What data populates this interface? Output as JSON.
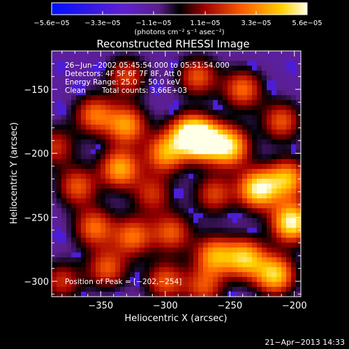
{
  "chart_data": {
    "type": "heatmap",
    "title": "Reconstructed RHESSI Image",
    "xlabel": "Heliocentric X (arcsec)",
    "ylabel": "Heliocentric Y (arcsec)",
    "xlim": [
      -388,
      -195
    ],
    "ylim": [
      -312,
      -120
    ],
    "x_ticks": [
      -350,
      -300,
      -250,
      -200
    ],
    "x_tick_labels": [
      "−350",
      "−300",
      "−250",
      "−200"
    ],
    "y_ticks": [
      -150,
      -200,
      -250,
      -300
    ],
    "y_tick_labels": [
      "−150",
      "−200",
      "−250",
      "−300"
    ],
    "colorbar": {
      "min": -5.6e-05,
      "max": 5.6e-05,
      "tick_labels": [
        "−5.6e−05",
        "−3.3e−05",
        "−1.1e−05",
        "1.1e−05",
        "3.3e−05",
        "5.6e−05"
      ],
      "units_label": "(photons cm⁻² s⁻¹ asec⁻²)"
    },
    "annotations": {
      "line1": "26−Jun−2002 05:45:54.000 to 05:51:54.000",
      "line2": "Detectors: 4F 5F 6F 7F 8F, Att 0",
      "line3": "Energy Range: 25.0 − 50.0 keV",
      "line4_a": "Clean",
      "line4_b": "Total counts: 3.66E+03",
      "peak": "Position of Peak = [−202,−254]"
    },
    "peak_position": [
      -202,
      -254
    ],
    "emission_peaks": [
      {
        "x": -202,
        "y": -254,
        "amp": 1.0
      },
      {
        "x": -228,
        "y": -228,
        "amp": 0.95
      },
      {
        "x": -270,
        "y": -190,
        "amp": 0.9
      },
      {
        "x": -250,
        "y": -195,
        "amp": 0.85
      },
      {
        "x": -282,
        "y": -185,
        "amp": 0.8
      },
      {
        "x": -300,
        "y": -200,
        "amp": 0.7
      },
      {
        "x": -330,
        "y": -178,
        "amp": 0.7
      },
      {
        "x": -335,
        "y": -212,
        "amp": 0.75
      },
      {
        "x": -355,
        "y": -170,
        "amp": 0.6
      },
      {
        "x": -368,
        "y": -226,
        "amp": 0.55
      },
      {
        "x": -355,
        "y": -258,
        "amp": 0.6
      },
      {
        "x": -325,
        "y": -265,
        "amp": 0.6
      },
      {
        "x": -295,
        "y": -262,
        "amp": 0.55
      },
      {
        "x": -262,
        "y": -280,
        "amp": 0.7
      },
      {
        "x": -238,
        "y": -282,
        "amp": 0.8
      },
      {
        "x": -215,
        "y": -295,
        "amp": 0.85
      },
      {
        "x": -205,
        "y": -220,
        "amp": 0.75
      },
      {
        "x": -210,
        "y": -175,
        "amp": 0.55
      },
      {
        "x": -240,
        "y": -150,
        "amp": 0.6
      },
      {
        "x": -275,
        "y": -140,
        "amp": 0.55
      },
      {
        "x": -330,
        "y": -140,
        "amp": 0.5
      },
      {
        "x": -345,
        "y": -290,
        "amp": 0.55
      },
      {
        "x": -300,
        "y": -300,
        "amp": 0.55
      },
      {
        "x": -270,
        "y": -305,
        "amp": 0.5
      },
      {
        "x": -385,
        "y": -195,
        "amp": 0.45
      },
      {
        "x": -380,
        "y": -300,
        "amp": 0.45
      },
      {
        "x": -310,
        "y": -232,
        "amp": 0.45
      },
      {
        "x": -262,
        "y": -232,
        "amp": 0.5
      }
    ]
  },
  "footer_timestamp": "21−Apr−2013 14:33",
  "colors": {
    "background": "#000000",
    "text": "#ffffff",
    "colormap": [
      "#0010ff",
      "#6020d0",
      "#5a1f8a",
      "#000000",
      "#a00000",
      "#ff6000",
      "#ffd000",
      "#ffffe8"
    ]
  }
}
